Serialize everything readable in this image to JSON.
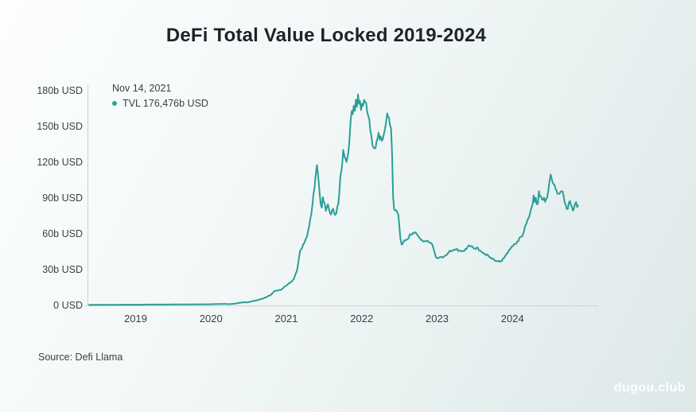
{
  "page": {
    "title": "DeFi Total Value Locked 2019-2024",
    "source": "Source: Defi Llama",
    "watermark": "dugou.club"
  },
  "tooltip": {
    "date": "Nov 14, 2021",
    "value_label": "TVL 176,476b USD"
  },
  "colors": {
    "line": "#2a9e96",
    "dot": "#2aa39a",
    "axis": "#c9d2d2",
    "text": "#3c4043",
    "title": "#1f2328",
    "watermark": "#ffffff"
  },
  "chart_data": {
    "type": "line",
    "title": "DeFi Total Value Locked 2019-2024",
    "series_name": "TVL",
    "unit": "b USD",
    "grid": false,
    "legend_position": "top-left",
    "xlim": [
      2018.383,
      2024.868
    ],
    "ylim": [
      0,
      180
    ],
    "y_ticks": [
      {
        "label": "180b USD",
        "value": 180
      },
      {
        "label": "150b USD",
        "value": 150
      },
      {
        "label": "120b USD",
        "value": 120
      },
      {
        "label": "90b USD",
        "value": 90
      },
      {
        "label": "60b USD",
        "value": 60
      },
      {
        "label": "30b USD",
        "value": 30
      },
      {
        "label": "0 USD",
        "value": 0
      }
    ],
    "x_ticks": [
      {
        "label": "2019",
        "year": 2019
      },
      {
        "label": "2020",
        "year": 2020
      },
      {
        "label": "2021",
        "year": 2021
      },
      {
        "label": "2022",
        "year": 2022
      },
      {
        "label": "2023",
        "year": 2023
      },
      {
        "label": "2024",
        "year": 2024
      }
    ],
    "x": [
      2018.383,
      2018.396,
      2018.41,
      2018.424,
      2018.437,
      2018.451,
      2018.465,
      2018.479,
      2018.492,
      2018.506,
      2018.52,
      2018.534,
      2018.547,
      2018.561,
      2018.575,
      2018.588,
      2018.602,
      2018.616,
      2018.63,
      2018.643,
      2018.657,
      2018.671,
      2018.684,
      2018.698,
      2018.712,
      2018.726,
      2018.739,
      2018.753,
      2018.767,
      2018.78,
      2018.794,
      2018.808,
      2018.822,
      2018.835,
      2018.849,
      2018.863,
      2018.877,
      2018.89,
      2018.904,
      2018.918,
      2018.931,
      2018.945,
      2018.959,
      2018.973,
      2018.986,
      2019.0,
      2019.014,
      2019.027,
      2019.041,
      2019.055,
      2019.069,
      2019.082,
      2019.096,
      2019.11,
      2019.123,
      2019.137,
      2019.151,
      2019.165,
      2019.178,
      2019.192,
      2019.206,
      2019.22,
      2019.233,
      2019.247,
      2019.261,
      2019.274,
      2019.288,
      2019.302,
      2019.316,
      2019.329,
      2019.343,
      2019.357,
      2019.37,
      2019.384,
      2019.398,
      2019.412,
      2019.425,
      2019.439,
      2019.453,
      2019.466,
      2019.48,
      2019.494,
      2019.508,
      2019.521,
      2019.535,
      2019.549,
      2019.563,
      2019.576,
      2019.59,
      2019.604,
      2019.617,
      2019.631,
      2019.645,
      2019.659,
      2019.672,
      2019.686,
      2019.7,
      2019.713,
      2019.727,
      2019.741,
      2019.755,
      2019.768,
      2019.782,
      2019.796,
      2019.809,
      2019.823,
      2019.837,
      2019.851,
      2019.864,
      2019.878,
      2019.892,
      2019.906,
      2019.919,
      2019.933,
      2019.947,
      2019.96,
      2019.974,
      2019.988,
      2020.002,
      2020.015,
      2020.029,
      2020.043,
      2020.056,
      2020.07,
      2020.084,
      2020.098,
      2020.111,
      2020.125,
      2020.139,
      2020.153,
      2020.166,
      2020.18,
      2020.194,
      2020.207,
      2020.221,
      2020.235,
      2020.249,
      2020.262,
      2020.276,
      2020.29,
      2020.303,
      2020.317,
      2020.331,
      2020.345,
      2020.358,
      2020.372,
      2020.386,
      2020.399,
      2020.413,
      2020.427,
      2020.441,
      2020.454,
      2020.468,
      2020.482,
      2020.496,
      2020.509,
      2020.523,
      2020.537,
      2020.55,
      2020.564,
      2020.578,
      2020.592,
      2020.605,
      2020.619,
      2020.633,
      2020.646,
      2020.66,
      2020.674,
      2020.688,
      2020.701,
      2020.715,
      2020.729,
      2020.742,
      2020.756,
      2020.77,
      2020.784,
      2020.797,
      2020.811,
      2020.825,
      2020.839,
      2020.852,
      2020.866,
      2020.88,
      2020.893,
      2020.907,
      2020.921,
      2020.935,
      2020.948,
      2020.962,
      2020.976,
      2020.989,
      2021.003,
      2021.017,
      2021.031,
      2021.044,
      2021.058,
      2021.072,
      2021.085,
      2021.099,
      2021.113,
      2021.127,
      2021.14,
      2021.154,
      2021.168,
      2021.182,
      2021.195,
      2021.209,
      2021.223,
      2021.236,
      2021.25,
      2021.264,
      2021.278,
      2021.291,
      2021.305,
      2021.319,
      2021.332,
      2021.346,
      2021.36,
      2021.374,
      2021.387,
      2021.406,
      2021.428,
      2021.442,
      2021.456,
      2021.47,
      2021.483,
      2021.497,
      2021.511,
      2021.525,
      2021.538,
      2021.552,
      2021.566,
      2021.579,
      2021.593,
      2021.607,
      2021.621,
      2021.634,
      2021.648,
      2021.662,
      2021.675,
      2021.689,
      2021.703,
      2021.717,
      2021.73,
      2021.744,
      2021.755,
      2021.772,
      2021.785,
      2021.799,
      2021.813,
      2021.826,
      2021.84,
      2021.854,
      2021.868,
      2021.881,
      2021.895,
      2021.909,
      2021.922,
      2021.936,
      2021.951,
      2021.964,
      2021.977,
      2021.991,
      2022.005,
      2022.018,
      2022.032,
      2022.046,
      2022.06,
      2022.073,
      2022.087,
      2022.101,
      2022.115,
      2022.128,
      2022.142,
      2022.156,
      2022.169,
      2022.183,
      2022.197,
      2022.211,
      2022.224,
      2022.238,
      2022.252,
      2022.265,
      2022.279,
      2022.293,
      2022.307,
      2022.32,
      2022.338,
      2022.348,
      2022.361,
      2022.375,
      2022.389,
      2022.403,
      2022.416,
      2022.43,
      2022.444,
      2022.458,
      2022.471,
      2022.485,
      2022.499,
      2022.512,
      2022.53,
      2022.54,
      2022.554,
      2022.567,
      2022.581,
      2022.595,
      2022.608,
      2022.622,
      2022.636,
      2022.65,
      2022.663,
      2022.677,
      2022.691,
      2022.704,
      2022.718,
      2022.732,
      2022.746,
      2022.759,
      2022.773,
      2022.787,
      2022.801,
      2022.814,
      2022.828,
      2022.842,
      2022.855,
      2022.869,
      2022.883,
      2022.897,
      2022.91,
      2022.924,
      2022.938,
      2022.951,
      2022.965,
      2022.979,
      2022.993,
      2023.006,
      2023.02,
      2023.034,
      2023.047,
      2023.061,
      2023.075,
      2023.089,
      2023.102,
      2023.116,
      2023.13,
      2023.144,
      2023.157,
      2023.171,
      2023.185,
      2023.198,
      2023.212,
      2023.226,
      2023.24,
      2023.253,
      2023.267,
      2023.281,
      2023.294,
      2023.308,
      2023.322,
      2023.336,
      2023.349,
      2023.363,
      2023.377,
      2023.391,
      2023.404,
      2023.418,
      2023.432,
      2023.445,
      2023.459,
      2023.473,
      2023.487,
      2023.5,
      2023.514,
      2023.528,
      2023.541,
      2023.555,
      2023.569,
      2023.583,
      2023.596,
      2023.61,
      2023.624,
      2023.637,
      2023.651,
      2023.665,
      2023.679,
      2023.692,
      2023.706,
      2023.72,
      2023.734,
      2023.747,
      2023.761,
      2023.775,
      2023.792,
      2023.802,
      2023.816,
      2023.83,
      2023.843,
      2023.857,
      2023.871,
      2023.884,
      2023.898,
      2023.912,
      2023.926,
      2023.939,
      2023.953,
      2023.967,
      2023.98,
      2023.994,
      2024.008,
      2024.022,
      2024.035,
      2024.049,
      2024.063,
      2024.077,
      2024.09,
      2024.104,
      2024.118,
      2024.131,
      2024.145,
      2024.159,
      2024.173,
      2024.186,
      2024.2,
      2024.214,
      2024.227,
      2024.241,
      2024.255,
      2024.269,
      2024.282,
      2024.296,
      2024.31,
      2024.323,
      2024.337,
      2024.351,
      2024.365,
      2024.378,
      2024.392,
      2024.406,
      2024.42,
      2024.433,
      2024.447,
      2024.461,
      2024.474,
      2024.488,
      2024.507,
      2024.529,
      2024.543,
      2024.557,
      2024.57,
      2024.584,
      2024.598,
      2024.612,
      2024.625,
      2024.639,
      2024.653,
      2024.666,
      2024.68,
      2024.694,
      2024.708,
      2024.721,
      2024.735,
      2024.749,
      2024.763,
      2024.776,
      2024.79,
      2024.804,
      2024.817,
      2024.831,
      2024.845,
      2024.859,
      2024.868
    ],
    "y": [
      0.1,
      0.2,
      0.2,
      0.2,
      0.2,
      0.2,
      0.2,
      0.2,
      0.2,
      0.2,
      0.2,
      0.2,
      0.2,
      0.2,
      0.2,
      0.2,
      0.2,
      0.2,
      0.2,
      0.2,
      0.2,
      0.2,
      0.2,
      0.2,
      0.2,
      0.2,
      0.2,
      0.2,
      0.2,
      0.2,
      0.3,
      0.3,
      0.3,
      0.3,
      0.3,
      0.3,
      0.3,
      0.3,
      0.3,
      0.3,
      0.3,
      0.3,
      0.3,
      0.3,
      0.3,
      0.3,
      0.3,
      0.3,
      0.3,
      0.3,
      0.3,
      0.3,
      0.3,
      0.3,
      0.3,
      0.4,
      0.4,
      0.4,
      0.4,
      0.4,
      0.4,
      0.4,
      0.4,
      0.4,
      0.4,
      0.4,
      0.4,
      0.4,
      0.4,
      0.4,
      0.4,
      0.4,
      0.4,
      0.4,
      0.4,
      0.4,
      0.4,
      0.4,
      0.4,
      0.5,
      0.5,
      0.5,
      0.5,
      0.5,
      0.5,
      0.5,
      0.5,
      0.5,
      0.5,
      0.5,
      0.5,
      0.5,
      0.5,
      0.5,
      0.5,
      0.5,
      0.5,
      0.5,
      0.5,
      0.5,
      0.5,
      0.5,
      0.6,
      0.6,
      0.6,
      0.6,
      0.6,
      0.6,
      0.6,
      0.6,
      0.6,
      0.6,
      0.6,
      0.6,
      0.6,
      0.6,
      0.6,
      0.6,
      0.7,
      0.7,
      0.7,
      0.7,
      0.7,
      0.8,
      0.8,
      0.8,
      0.8,
      0.8,
      0.8,
      0.9,
      0.9,
      0.9,
      0.9,
      0.8,
      0.8,
      0.7,
      0.7,
      0.8,
      0.9,
      1.0,
      1.1,
      1.1,
      1.3,
      1.5,
      1.6,
      1.8,
      1.9,
      2.0,
      2.2,
      2.3,
      2.4,
      2.3,
      2.2,
      2.3,
      2.4,
      2.6,
      2.8,
      3.0,
      3.2,
      3.4,
      3.5,
      3.8,
      3.9,
      4.1,
      4.4,
      4.6,
      4.9,
      5.1,
      5.4,
      5.8,
      6.2,
      6.4,
      6.8,
      7.4,
      7.9,
      8.0,
      8.6,
      9.7,
      10.5,
      11.6,
      11.8,
      12.1,
      12.1,
      12.3,
      12.7,
      12.5,
      13.1,
      13.8,
      14.4,
      15.5,
      15.9,
      16.5,
      17.1,
      18.1,
      18.6,
      19.1,
      19.8,
      20.8,
      21.8,
      24.4,
      26.6,
      28.7,
      33.6,
      39.7,
      45.1,
      46.6,
      47.7,
      50.8,
      51.8,
      54.3,
      56.2,
      58.1,
      62.9,
      66.8,
      72.7,
      76.6,
      84.2,
      92.9,
      98.2,
      107.9,
      117.3,
      103.8,
      93.4,
      84.4,
      81.6,
      90.4,
      86.6,
      84.4,
      78.9,
      82.1,
      84.5,
      80.2,
      77.2,
      75.8,
      79.3,
      80.7,
      77.0,
      75.5,
      76.7,
      82.3,
      84.6,
      94.3,
      107.7,
      112.5,
      120.2,
      130.0,
      124.5,
      122.5,
      120.0,
      124.6,
      129.8,
      141.2,
      155.2,
      162.7,
      160.0,
      167.1,
      162.8,
      172.1,
      166.1,
      176.5,
      168.7,
      171.1,
      163.4,
      168.6,
      167.0,
      172.0,
      169.8,
      169.4,
      161.5,
      158.5,
      155.4,
      146.0,
      141.6,
      134.1,
      132.0,
      131.2,
      131.5,
      137.1,
      139.8,
      144.5,
      138.8,
      141.3,
      137.6,
      139.0,
      143.0,
      146.8,
      152.0,
      160.6,
      158.2,
      157.1,
      150.4,
      148.3,
      127.3,
      90.6,
      80.2,
      79.3,
      79.5,
      77.7,
      75.9,
      66.8,
      56.0,
      50.6,
      51.1,
      52.9,
      54.3,
      54.1,
      54.8,
      55.1,
      56.1,
      59.1,
      59.2,
      58.9,
      60.3,
      60.0,
      61.1,
      60.7,
      59.4,
      58.2,
      56.7,
      56.0,
      54.5,
      54.4,
      53.2,
      53.5,
      53.4,
      53.3,
      54.0,
      53.4,
      52.5,
      52.1,
      51.8,
      50.5,
      47.7,
      44.4,
      41.3,
      39.5,
      39.2,
      39.5,
      40.0,
      40.3,
      40.2,
      39.7,
      40.6,
      41.0,
      41.8,
      42.1,
      43.2,
      44.6,
      45.6,
      45.0,
      45.2,
      45.8,
      46.5,
      46.3,
      46.8,
      47.0,
      45.3,
      45.6,
      45.6,
      45.1,
      45.1,
      45.3,
      45.4,
      47.1,
      47.0,
      48.6,
      49.9,
      49.7,
      49.0,
      49.4,
      48.6,
      47.5,
      47.2,
      47.0,
      48.4,
      47.8,
      45.8,
      45.6,
      45.1,
      44.2,
      43.4,
      43.4,
      42.5,
      41.7,
      42.5,
      41.5,
      40.3,
      40.0,
      38.8,
      39.1,
      38.8,
      37.5,
      37.1,
      36.8,
      36.7,
      37.1,
      36.3,
      36.8,
      36.7,
      38.7,
      39.1,
      40.5,
      41.8,
      43.3,
      43.8,
      46.0,
      46.6,
      48.0,
      49.2,
      49.4,
      51.0,
      51.2,
      51.3,
      53.2,
      53.4,
      56.0,
      57.0,
      57.3,
      57.7,
      60.0,
      63.4,
      67.0,
      68.3,
      71.5,
      72.7,
      75.1,
      79.4,
      81.9,
      85.1,
      91.9,
      86.2,
      89.9,
      84.4,
      84.9,
      95.4,
      91.0,
      91.0,
      88.8,
      88.1,
      89.9,
      86.5,
      88.8,
      90.0,
      95.3,
      102.2,
      109.4,
      103.5,
      101.5,
      100.9,
      97.6,
      95.9,
      93.2,
      93.3,
      93.3,
      95.0,
      95.4,
      95.2,
      90.7,
      85.7,
      83.8,
      80.4,
      80.6,
      85.9,
      87.2,
      84.1,
      82.0,
      79.0,
      81.5,
      84.9,
      86.2,
      82.1,
      83.5
    ]
  }
}
